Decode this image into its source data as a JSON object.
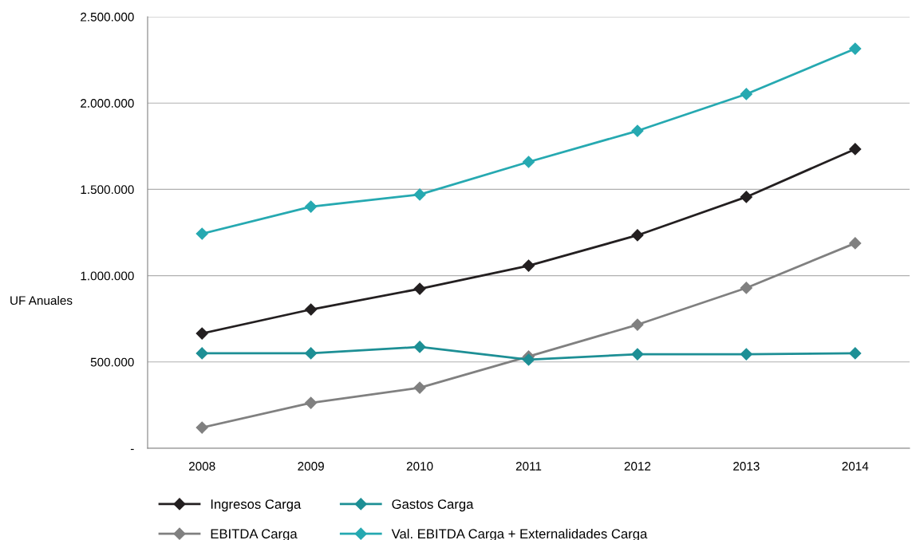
{
  "chart_data": {
    "type": "line",
    "ylabel": "UF Anuales",
    "categories": [
      "2008",
      "2009",
      "2010",
      "2011",
      "2012",
      "2013",
      "2014"
    ],
    "series": [
      {
        "name": "Ingresos Carga",
        "color": "#231f20",
        "values": [
          665000,
          804000,
          924000,
          1058000,
          1234000,
          1456000,
          1733000
        ]
      },
      {
        "name": "Gastos Carga",
        "color": "#1d8f95",
        "values": [
          550000,
          550000,
          587000,
          513000,
          545000,
          545000,
          550000
        ]
      },
      {
        "name": "EBITDA Carga",
        "color": "#808080",
        "values": [
          120000,
          263000,
          351000,
          532000,
          716000,
          929000,
          1188000
        ]
      },
      {
        "name": "Val. EBITDA Carga + Externalidades Carga",
        "color": "#26a9b1",
        "values": [
          1243000,
          1400000,
          1470000,
          1659000,
          1839000,
          2052000,
          2315000
        ]
      }
    ],
    "ylim": [
      0,
      2500000
    ],
    "yticks": [
      {
        "value": 0,
        "label": "-"
      },
      {
        "value": 500000,
        "label": "500.000"
      },
      {
        "value": 1000000,
        "label": "1.000.000"
      },
      {
        "value": 1500000,
        "label": "1.500.000"
      },
      {
        "value": 2000000,
        "label": "2.000.000"
      },
      {
        "value": 2500000,
        "label": "2.500.000"
      }
    ],
    "grid": "y",
    "legend": "bottom",
    "marker": "diamond",
    "line_style": "solid"
  }
}
